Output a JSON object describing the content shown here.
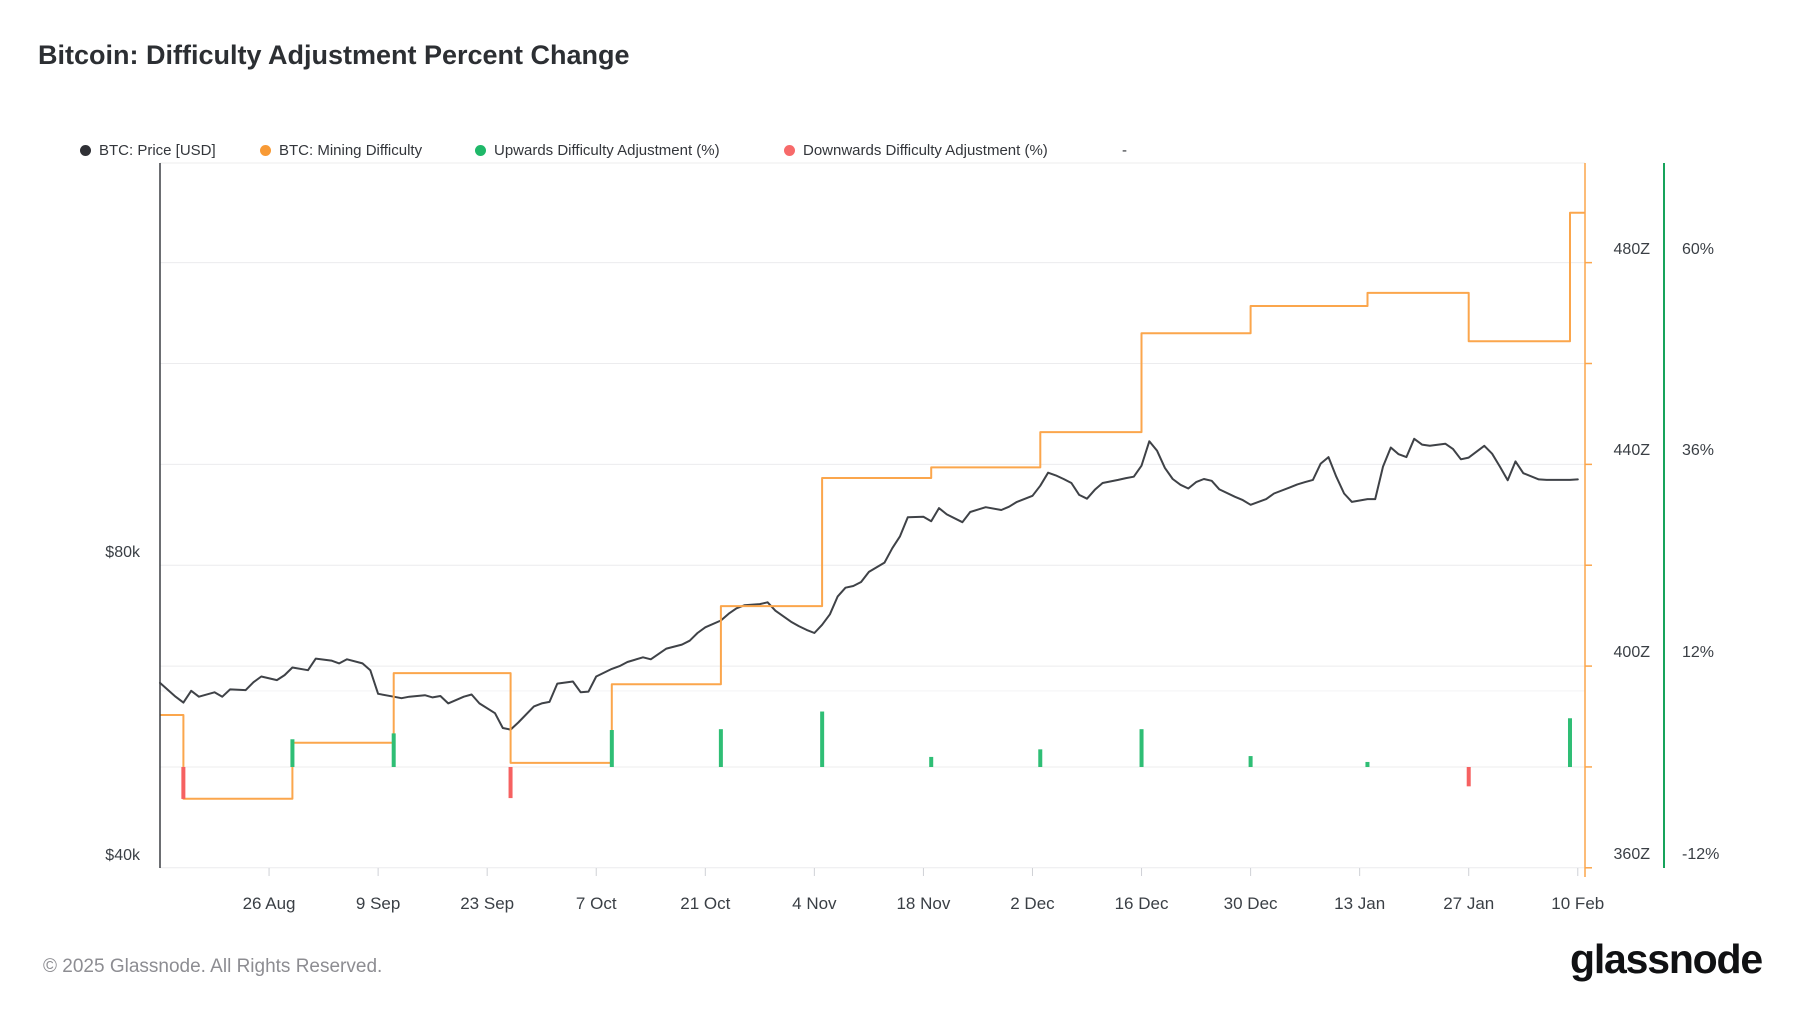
{
  "title": "Bitcoin: Difficulty Adjustment Percent Change",
  "legend": {
    "items": [
      {
        "label": "BTC: Price [USD]",
        "color": "#2f3035"
      },
      {
        "label": "BTC: Mining Difficulty",
        "color": "#f89a35"
      },
      {
        "label": "Upwards Difficulty Adjustment (%)",
        "color": "#1fb869"
      },
      {
        "label": "Downwards Difficulty Adjustment (%)",
        "color": "#f76a6a"
      },
      {
        "label": "-",
        "color": null
      }
    ]
  },
  "footer": {
    "copyright": "© 2025 Glassnode. All Rights Reserved.",
    "brand": "glassnode"
  },
  "chart_data": {
    "type": "line",
    "title": "Bitcoin: Difficulty Adjustment Percent Change",
    "grid": "horizontal",
    "x_axis": {
      "type": "date",
      "start": "2024-08-12",
      "end": "2025-02-11",
      "ticks": [
        {
          "label": "26 Aug",
          "date": "2024-08-26"
        },
        {
          "label": "9 Sep",
          "date": "2024-09-09"
        },
        {
          "label": "23 Sep",
          "date": "2024-09-23"
        },
        {
          "label": "7 Oct",
          "date": "2024-10-07"
        },
        {
          "label": "21 Oct",
          "date": "2024-10-21"
        },
        {
          "label": "4 Nov",
          "date": "2024-11-04"
        },
        {
          "label": "18 Nov",
          "date": "2024-11-18"
        },
        {
          "label": "2 Dec",
          "date": "2024-12-02"
        },
        {
          "label": "16 Dec",
          "date": "2024-12-16"
        },
        {
          "label": "30 Dec",
          "date": "2024-12-30"
        },
        {
          "label": "13 Jan",
          "date": "2025-01-13"
        },
        {
          "label": "27 Jan",
          "date": "2025-01-27"
        },
        {
          "label": "10 Feb",
          "date": "2025-02-10"
        }
      ]
    },
    "y_axis_price": {
      "side": "left",
      "scale": "log",
      "unit": "USD",
      "ticks": [
        {
          "label": "$80k",
          "value": 80000
        },
        {
          "label": "$40k",
          "value": 40000
        }
      ],
      "minor_gridline_values": [
        60000
      ]
    },
    "y_axis_difficulty": {
      "side": "right",
      "unit": "Z",
      "range": [
        360,
        500
      ],
      "minor_grid_step": 20,
      "ticks": [
        {
          "label": "480Z",
          "value": 480
        },
        {
          "label": "440Z",
          "value": 440
        },
        {
          "label": "400Z",
          "value": 400
        },
        {
          "label": "360Z",
          "value": 360
        }
      ]
    },
    "y_axis_percent": {
      "side": "far-right",
      "unit": "%",
      "range": [
        -12,
        60
      ],
      "zero_baseline": 0,
      "ticks": [
        {
          "label": "60%",
          "value": 60
        },
        {
          "label": "36%",
          "value": 36
        },
        {
          "label": "12%",
          "value": 12
        },
        {
          "label": "-12%",
          "value": -12
        }
      ]
    },
    "series": [
      {
        "name": "BTC: Price [USD]",
        "type": "line",
        "color": "#3f4247",
        "y_axis": "price",
        "points": [
          [
            "2024-08-12",
            61100
          ],
          [
            "2024-08-14",
            59200
          ],
          [
            "2024-08-15",
            58400
          ],
          [
            "2024-08-16",
            60000
          ],
          [
            "2024-08-17",
            59200
          ],
          [
            "2024-08-19",
            59800
          ],
          [
            "2024-08-20",
            59200
          ],
          [
            "2024-08-21",
            60200
          ],
          [
            "2024-08-23",
            60100
          ],
          [
            "2024-08-24",
            61200
          ],
          [
            "2024-08-25",
            62000
          ],
          [
            "2024-08-27",
            61500
          ],
          [
            "2024-08-28",
            62200
          ],
          [
            "2024-08-29",
            63300
          ],
          [
            "2024-08-31",
            62900
          ],
          [
            "2024-09-01",
            64600
          ],
          [
            "2024-09-03",
            64300
          ],
          [
            "2024-09-04",
            63900
          ],
          [
            "2024-09-05",
            64500
          ],
          [
            "2024-09-07",
            63900
          ],
          [
            "2024-09-08",
            62900
          ],
          [
            "2024-09-09",
            59600
          ],
          [
            "2024-09-11",
            59200
          ],
          [
            "2024-09-12",
            59000
          ],
          [
            "2024-09-13",
            59200
          ],
          [
            "2024-09-15",
            59400
          ],
          [
            "2024-09-16",
            59100
          ],
          [
            "2024-09-17",
            59300
          ],
          [
            "2024-09-18",
            58300
          ],
          [
            "2024-09-20",
            59200
          ],
          [
            "2024-09-21",
            59500
          ],
          [
            "2024-09-22",
            58300
          ],
          [
            "2024-09-24",
            57000
          ],
          [
            "2024-09-25",
            55100
          ],
          [
            "2024-09-26",
            54900
          ],
          [
            "2024-09-27",
            55800
          ],
          [
            "2024-09-29",
            57900
          ],
          [
            "2024-09-30",
            58300
          ],
          [
            "2024-10-01",
            58500
          ],
          [
            "2024-10-02",
            61000
          ],
          [
            "2024-10-04",
            61300
          ],
          [
            "2024-10-05",
            59800
          ],
          [
            "2024-10-06",
            59900
          ],
          [
            "2024-10-07",
            62000
          ],
          [
            "2024-10-09",
            63100
          ],
          [
            "2024-10-10",
            63500
          ],
          [
            "2024-10-11",
            64100
          ],
          [
            "2024-10-13",
            64800
          ],
          [
            "2024-10-14",
            64500
          ],
          [
            "2024-10-15",
            65300
          ],
          [
            "2024-10-16",
            66100
          ],
          [
            "2024-10-18",
            66700
          ],
          [
            "2024-10-19",
            67300
          ],
          [
            "2024-10-20",
            68500
          ],
          [
            "2024-10-21",
            69400
          ],
          [
            "2024-10-23",
            70500
          ],
          [
            "2024-10-24",
            71600
          ],
          [
            "2024-10-25",
            72500
          ],
          [
            "2024-10-26",
            73000
          ],
          [
            "2024-10-28",
            73200
          ],
          [
            "2024-10-29",
            73500
          ],
          [
            "2024-10-30",
            72100
          ],
          [
            "2024-11-01",
            70300
          ],
          [
            "2024-11-02",
            69600
          ],
          [
            "2024-11-03",
            69000
          ],
          [
            "2024-11-04",
            68500
          ],
          [
            "2024-11-05",
            69800
          ],
          [
            "2024-11-06",
            71500
          ],
          [
            "2024-11-07",
            74500
          ],
          [
            "2024-11-08",
            76000
          ],
          [
            "2024-11-09",
            76300
          ],
          [
            "2024-11-10",
            77000
          ],
          [
            "2024-11-11",
            78800
          ],
          [
            "2024-11-13",
            80500
          ],
          [
            "2024-11-14",
            83200
          ],
          [
            "2024-11-15",
            85500
          ],
          [
            "2024-11-16",
            89300
          ],
          [
            "2024-11-18",
            89400
          ],
          [
            "2024-11-19",
            88500
          ],
          [
            "2024-11-20",
            91200
          ],
          [
            "2024-11-21",
            89900
          ],
          [
            "2024-11-23",
            88300
          ],
          [
            "2024-11-24",
            90400
          ],
          [
            "2024-11-25",
            90900
          ],
          [
            "2024-11-26",
            91400
          ],
          [
            "2024-11-28",
            90800
          ],
          [
            "2024-11-29",
            91500
          ],
          [
            "2024-11-30",
            92500
          ],
          [
            "2024-12-02",
            93800
          ],
          [
            "2024-12-03",
            96000
          ],
          [
            "2024-12-04",
            98900
          ],
          [
            "2024-12-05",
            98300
          ],
          [
            "2024-12-06",
            97500
          ],
          [
            "2024-12-07",
            96600
          ],
          [
            "2024-12-08",
            94000
          ],
          [
            "2024-12-09",
            93200
          ],
          [
            "2024-12-10",
            95100
          ],
          [
            "2024-12-11",
            96600
          ],
          [
            "2024-12-13",
            97300
          ],
          [
            "2024-12-14",
            97700
          ],
          [
            "2024-12-15",
            98000
          ],
          [
            "2024-12-16",
            100500
          ],
          [
            "2024-12-17",
            106300
          ],
          [
            "2024-12-18",
            104000
          ],
          [
            "2024-12-19",
            100000
          ],
          [
            "2024-12-20",
            97500
          ],
          [
            "2024-12-21",
            96200
          ],
          [
            "2024-12-22",
            95400
          ],
          [
            "2024-12-23",
            96800
          ],
          [
            "2024-12-24",
            97500
          ],
          [
            "2024-12-25",
            97100
          ],
          [
            "2024-12-26",
            95200
          ],
          [
            "2024-12-28",
            93600
          ],
          [
            "2024-12-29",
            92900
          ],
          [
            "2024-12-30",
            91900
          ],
          [
            "2025-01-01",
            93100
          ],
          [
            "2025-01-02",
            94300
          ],
          [
            "2025-01-04",
            95600
          ],
          [
            "2025-01-05",
            96300
          ],
          [
            "2025-01-06",
            96800
          ],
          [
            "2025-01-07",
            97300
          ],
          [
            "2025-01-08",
            101000
          ],
          [
            "2025-01-09",
            102500
          ],
          [
            "2025-01-10",
            98000
          ],
          [
            "2025-01-11",
            94300
          ],
          [
            "2025-01-12",
            92500
          ],
          [
            "2025-01-14",
            93100
          ],
          [
            "2025-01-15",
            93100
          ],
          [
            "2025-01-16",
            100300
          ],
          [
            "2025-01-17",
            104800
          ],
          [
            "2025-01-18",
            103200
          ],
          [
            "2025-01-19",
            102500
          ],
          [
            "2025-01-20",
            106900
          ],
          [
            "2025-01-21",
            105500
          ],
          [
            "2025-01-22",
            105200
          ],
          [
            "2025-01-24",
            105700
          ],
          [
            "2025-01-25",
            104400
          ],
          [
            "2025-01-26",
            102000
          ],
          [
            "2025-01-27",
            102400
          ],
          [
            "2025-01-29",
            105200
          ],
          [
            "2025-01-30",
            103300
          ],
          [
            "2025-01-31",
            100300
          ],
          [
            "2025-02-01",
            97200
          ],
          [
            "2025-02-02",
            101500
          ],
          [
            "2025-02-03",
            98800
          ],
          [
            "2025-02-05",
            97400
          ],
          [
            "2025-02-06",
            97300
          ],
          [
            "2025-02-07",
            97300
          ],
          [
            "2025-02-09",
            97300
          ],
          [
            "2025-02-10",
            97400
          ]
        ]
      },
      {
        "name": "BTC: Mining Difficulty",
        "type": "step",
        "color": "#fba64c",
        "y_axis": "difficulty",
        "points": [
          [
            "2024-08-12",
            390.3
          ],
          [
            "2024-08-15",
            373.7
          ],
          [
            "2024-08-29",
            384.8
          ],
          [
            "2024-09-11",
            398.6
          ],
          [
            "2024-09-26",
            380.8
          ],
          [
            "2024-10-09",
            396.4
          ],
          [
            "2024-10-23",
            411.9
          ],
          [
            "2024-11-05",
            437.3
          ],
          [
            "2024-11-19",
            439.4
          ],
          [
            "2024-12-03",
            446.4
          ],
          [
            "2024-12-16",
            466.0
          ],
          [
            "2024-12-30",
            471.4
          ],
          [
            "2025-01-14",
            474.0
          ],
          [
            "2025-01-27",
            464.4
          ],
          [
            "2025-02-09",
            489.9
          ]
        ]
      },
      {
        "name": "Upwards Difficulty Adjustment (%)",
        "type": "bar",
        "color": "#2fbe75",
        "y_axis": "percent",
        "points": [
          [
            "2024-08-29",
            3.3
          ],
          [
            "2024-09-11",
            4.0
          ],
          [
            "2024-10-09",
            4.4
          ],
          [
            "2024-10-23",
            4.5
          ],
          [
            "2024-11-05",
            6.6
          ],
          [
            "2024-11-19",
            1.2
          ],
          [
            "2024-12-03",
            2.1
          ],
          [
            "2024-12-16",
            4.5
          ],
          [
            "2024-12-30",
            1.3
          ],
          [
            "2025-01-14",
            0.6
          ],
          [
            "2025-02-09",
            5.8
          ]
        ]
      },
      {
        "name": "Downwards Difficulty Adjustment (%)",
        "type": "bar",
        "color": "#f66161",
        "y_axis": "percent",
        "points": [
          [
            "2024-08-15",
            -3.8
          ],
          [
            "2024-09-26",
            -3.7
          ],
          [
            "2025-01-27",
            -2.3
          ]
        ]
      }
    ]
  }
}
